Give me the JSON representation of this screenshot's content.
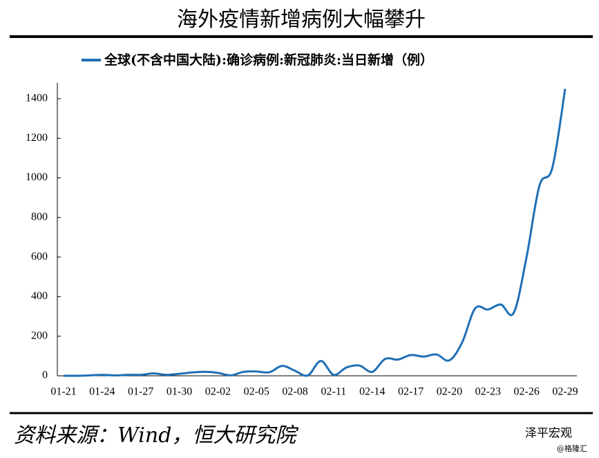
{
  "chart_data": {
    "type": "line",
    "title": "海外疫情新增病例大幅攀升",
    "categories": [
      "01-21",
      null,
      null,
      "01-24",
      null,
      null,
      "01-27",
      null,
      null,
      "01-30",
      null,
      null,
      "02-02",
      null,
      null,
      "02-05",
      null,
      null,
      "02-08",
      null,
      null,
      "02-11",
      null,
      null,
      "02-14",
      null,
      null,
      "02-17",
      null,
      null,
      "02-20",
      null,
      null,
      "02-23",
      null,
      null,
      "02-26",
      null,
      null,
      "02-29"
    ],
    "series": [
      {
        "name": "全球(不含中国大陆):确诊病例:新冠肺炎:当日新增（例）",
        "color": "#1f6fb5",
        "values": [
          0,
          0,
          2,
          5,
          2,
          5,
          5,
          12,
          5,
          10,
          17,
          20,
          15,
          2,
          20,
          22,
          18,
          50,
          25,
          2,
          75,
          5,
          42,
          52,
          20,
          85,
          82,
          105,
          97,
          108,
          78,
          170,
          340,
          335,
          360,
          318,
          600,
          960,
          1050,
          1450
        ]
      }
    ],
    "ylim": [
      0,
      1480
    ],
    "yticks": [
      0,
      200,
      400,
      600,
      800,
      1000,
      1200,
      1400
    ],
    "legend": "top",
    "source": "资料来源：Wind，恒大研究院",
    "watermark": "泽平宏观",
    "credit": "@格隆汇"
  }
}
